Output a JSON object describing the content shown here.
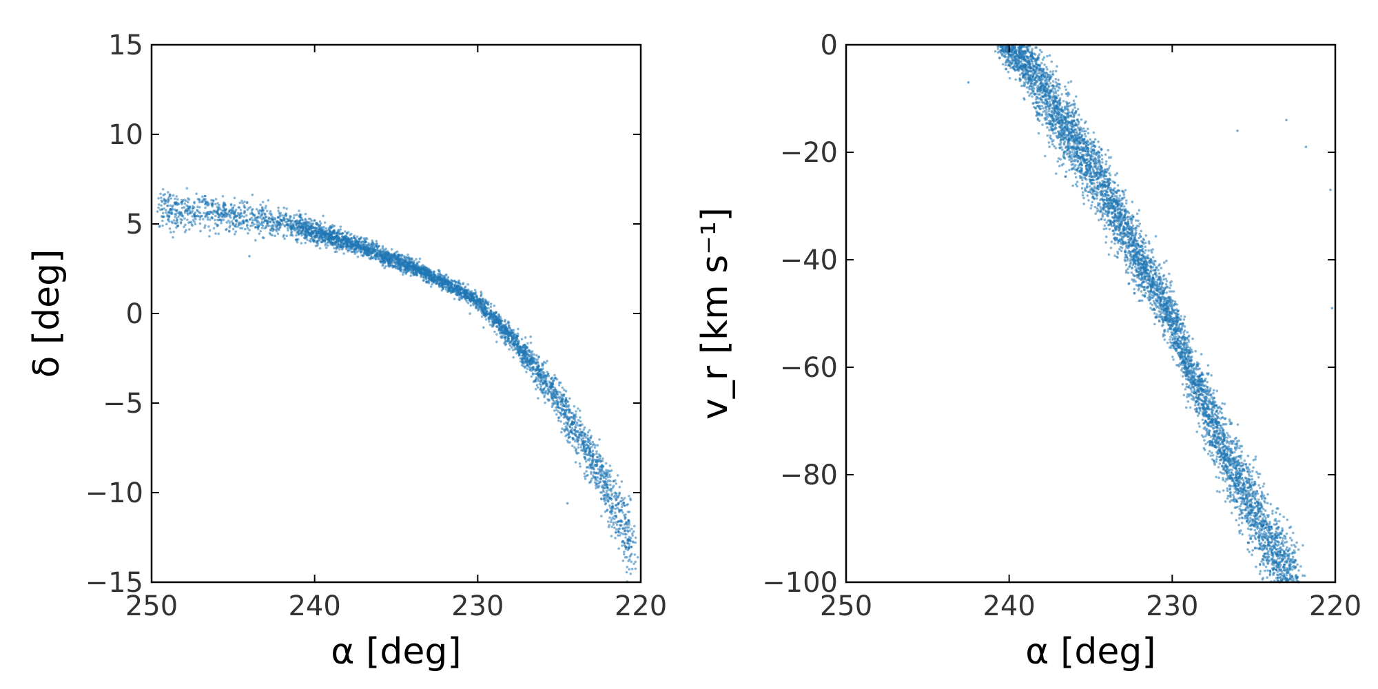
{
  "chart_data": [
    {
      "type": "scatter",
      "title": "",
      "xlabel": "α [deg]",
      "ylabel": "δ [deg]",
      "xlim": [
        250,
        220
      ],
      "ylim": [
        -15,
        15
      ],
      "x_reversed": true,
      "xticks": [
        250,
        240,
        230,
        220
      ],
      "yticks": [
        15,
        10,
        5,
        0,
        -5,
        -10,
        -15
      ],
      "xtick_labels": [
        "250",
        "240",
        "230",
        "220"
      ],
      "ytick_labels": [
        "15",
        "10",
        "5",
        "0",
        "−5",
        "−10",
        "−15"
      ],
      "point_color": "#1f77b4",
      "series": [
        {
          "x": [
            249.5,
            248,
            246,
            244,
            242,
            240,
            238,
            236,
            234,
            232,
            230,
            229,
            228,
            227,
            226,
            225,
            224,
            223,
            222,
            221,
            220.5
          ],
          "y": [
            5.9,
            5.8,
            5.6,
            5.3,
            5.0,
            4.6,
            4.0,
            3.3,
            2.6,
            1.7,
            0.7,
            -0.3,
            -1.3,
            -2.4,
            -3.6,
            -4.9,
            -6.5,
            -8.2,
            -10.0,
            -12.0,
            -13.5
          ],
          "spread": [
            0.55,
            0.5,
            0.45,
            0.4,
            0.35,
            0.3,
            0.25,
            0.25,
            0.2,
            0.2,
            0.2,
            0.25,
            0.3,
            0.35,
            0.4,
            0.45,
            0.55,
            0.65,
            0.75,
            0.9,
            1.0
          ]
        }
      ]
    },
    {
      "type": "scatter",
      "title": "",
      "xlabel": "α [deg]",
      "ylabel": "v_r [km s⁻¹]",
      "xlim": [
        250,
        220
      ],
      "ylim": [
        -100,
        0
      ],
      "x_reversed": true,
      "xticks": [
        250,
        240,
        230,
        220
      ],
      "yticks": [
        0,
        -20,
        -40,
        -60,
        -80,
        -100
      ],
      "xtick_labels": [
        "250",
        "240",
        "230",
        "220"
      ],
      "ytick_labels": [
        "0",
        "−20",
        "−40",
        "−60",
        "−80",
        "−100"
      ],
      "point_color": "#1f77b4",
      "series": [
        {
          "x": [
            240.5,
            239,
            238,
            237,
            236,
            235,
            234,
            233,
            232,
            231,
            230,
            229.5,
            229,
            228,
            227,
            226,
            225,
            224,
            223,
            222.5
          ],
          "y": [
            1,
            -3,
            -8,
            -13,
            -18,
            -23,
            -28,
            -34,
            -40,
            -45,
            -51,
            -55,
            -60,
            -67,
            -74,
            -81,
            -87,
            -93,
            -98,
            -100
          ],
          "spread": [
            1.5,
            2.5,
            3.0,
            3.2,
            3.2,
            3.0,
            3.0,
            3.0,
            2.8,
            2.5,
            2.0,
            2.0,
            2.0,
            2.5,
            3.0,
            3.2,
            3.5,
            3.5,
            3.5,
            3.5
          ]
        }
      ]
    }
  ]
}
